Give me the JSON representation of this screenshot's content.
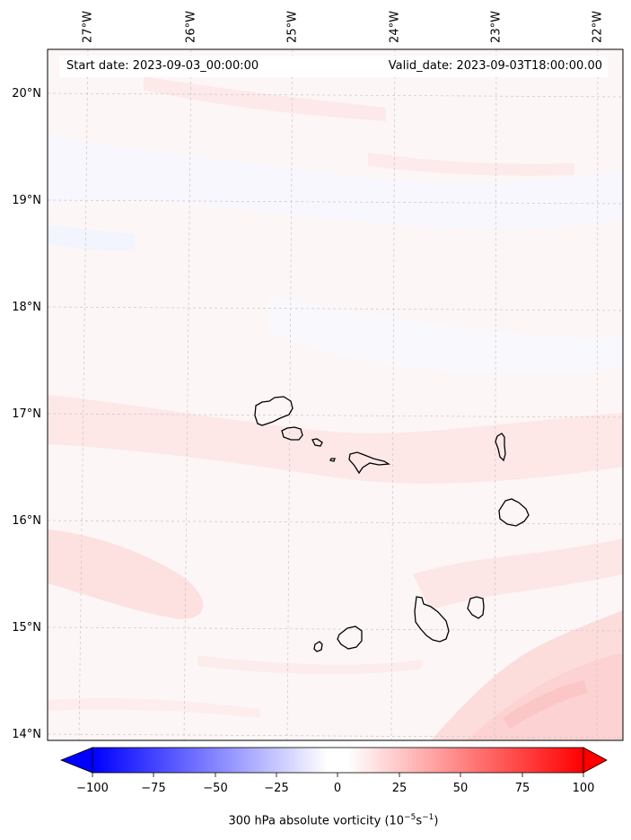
{
  "header": {
    "start_date": "Start date: 2023-09-03_00:00:00",
    "valid_date": "Valid_date: 2023-09-03T18:00:00.00"
  },
  "axes": {
    "longitude_labels": [
      "27°W",
      "26°W",
      "25°W",
      "24°W",
      "23°W",
      "22°W"
    ],
    "latitude_labels": [
      "20°N",
      "19°N",
      "18°N",
      "17°N",
      "16°N",
      "15°N",
      "14°N"
    ]
  },
  "colorbar": {
    "ticks": [
      "−100",
      "−75",
      "−50",
      "−25",
      "0",
      "25",
      "50",
      "75",
      "100"
    ],
    "label_prefix": "300 hPa absolute vorticity (10",
    "label_exp1": "−5",
    "label_mid": "s",
    "label_exp2": "−1",
    "label_suffix": ")",
    "min": -100,
    "max": 100,
    "colors": {
      "negative": "#0000ff",
      "zero": "#ffffff",
      "positive": "#ff0000"
    }
  },
  "colors": {
    "background_field": "#fdf6f6",
    "coastline": "#000000",
    "gridline": "#c8c8c8"
  }
}
